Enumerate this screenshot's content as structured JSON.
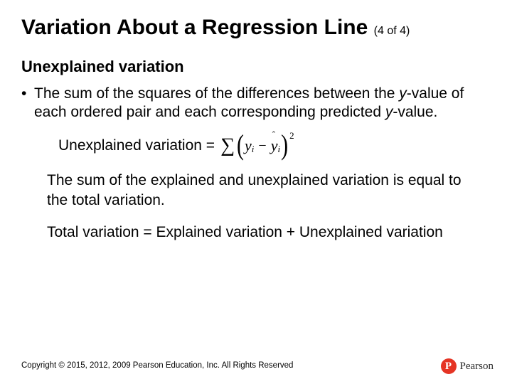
{
  "title": {
    "main": "Variation About a Regression Line",
    "sub": "(4 of 4)"
  },
  "subtitle": "Unexplained variation",
  "bullet": {
    "pre": "The sum of the squares of the differences between the ",
    "y1": "y",
    "mid1": "-value of each ordered pair and each corresponding predicted ",
    "y2": "y",
    "post": "-value."
  },
  "formula": {
    "label": "Unexplained variation =",
    "sigma": "∑",
    "lparen": "(",
    "y": "y",
    "sub_i1": "i",
    "minus": "−",
    "yhat": "y",
    "caret": "ˆ",
    "sub_i2": "i",
    "rparen": ")",
    "exp": "2"
  },
  "para1": "The sum of the explained and unexplained variation is equal to the total variation.",
  "para2": "Total variation = Explained variation + Unexplained variation",
  "copyright": "Copyright © 2015, 2012, 2009 Pearson Education, Inc. All Rights Reserved",
  "logo": {
    "p": "P",
    "text": "Pearson"
  }
}
